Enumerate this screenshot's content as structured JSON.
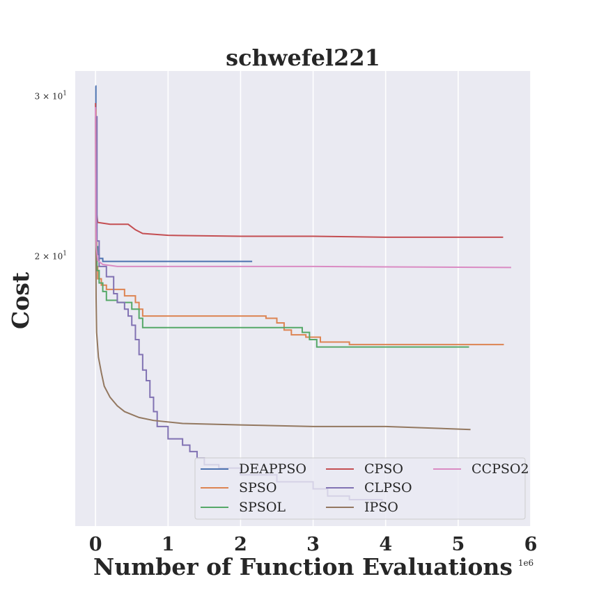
{
  "chart_data": {
    "type": "line",
    "title": "schwefel221",
    "xlabel": "Number of Function Evaluations",
    "ylabel": "Cost",
    "x_offset_label": "1e6",
    "xlim": [
      -0.28,
      6.0
    ],
    "ylim": [
      10.1,
      32.0
    ],
    "yscale": "log",
    "x_ticks": [
      0,
      1,
      2,
      3,
      4,
      5,
      6
    ],
    "x_tick_labels": [
      "0",
      "1",
      "2",
      "3",
      "4",
      "5",
      "6"
    ],
    "y_ticks": [
      {
        "value": 30,
        "base": "3 × 10",
        "exp": "1"
      },
      {
        "value": 20,
        "base": "2 × 10",
        "exp": "1"
      }
    ],
    "grid": "vertical",
    "legend_position": "lower-right",
    "series": [
      {
        "name": "DEAPPSO",
        "color": "#4c72b0",
        "step": true,
        "points": [
          [
            0,
            30.8
          ],
          [
            0.005,
            25
          ],
          [
            0.01,
            21.5
          ],
          [
            0.015,
            20.5
          ],
          [
            0.03,
            20.1
          ],
          [
            0.05,
            19.9
          ],
          [
            0.1,
            19.9
          ],
          [
            0.1,
            19.75
          ],
          [
            1.0,
            19.75
          ],
          [
            2.16,
            19.75
          ]
        ]
      },
      {
        "name": "SPSO",
        "color": "#dd8452",
        "step": true,
        "points": [
          [
            0,
            29
          ],
          [
            0.005,
            24
          ],
          [
            0.01,
            21
          ],
          [
            0.015,
            19.5
          ],
          [
            0.03,
            18.9
          ],
          [
            0.08,
            18.6
          ],
          [
            0.15,
            18.6
          ],
          [
            0.15,
            18.4
          ],
          [
            0.3,
            18.4
          ],
          [
            0.4,
            18.1
          ],
          [
            0.5,
            18.1
          ],
          [
            0.55,
            17.8
          ],
          [
            0.6,
            17.5
          ],
          [
            0.65,
            17.2
          ],
          [
            1.0,
            17.2
          ],
          [
            2.3,
            17.2
          ],
          [
            2.35,
            17.1
          ],
          [
            2.5,
            16.9
          ],
          [
            2.6,
            16.6
          ],
          [
            2.7,
            16.4
          ],
          [
            2.9,
            16.3
          ],
          [
            3.1,
            16.1
          ],
          [
            3.5,
            16.0
          ],
          [
            5.63,
            16.0
          ]
        ]
      },
      {
        "name": "SPSOL",
        "color": "#55a868",
        "step": true,
        "points": [
          [
            0,
            28.5
          ],
          [
            0.005,
            23
          ],
          [
            0.01,
            20.5
          ],
          [
            0.02,
            19.3
          ],
          [
            0.05,
            19.1
          ],
          [
            0.05,
            18.7
          ],
          [
            0.1,
            18.7
          ],
          [
            0.1,
            18.3
          ],
          [
            0.15,
            18.3
          ],
          [
            0.15,
            17.9
          ],
          [
            0.3,
            17.9
          ],
          [
            0.3,
            17.8
          ],
          [
            0.45,
            17.8
          ],
          [
            0.5,
            17.5
          ],
          [
            0.6,
            17.1
          ],
          [
            0.65,
            16.7
          ],
          [
            1.0,
            16.7
          ],
          [
            2.8,
            16.7
          ],
          [
            2.85,
            16.5
          ],
          [
            2.95,
            16.2
          ],
          [
            3.05,
            15.9
          ],
          [
            5.15,
            15.9
          ]
        ]
      },
      {
        "name": "CPSO",
        "color": "#c44e52",
        "step": false,
        "points": [
          [
            0,
            29.5
          ],
          [
            0.005,
            25
          ],
          [
            0.01,
            22.5
          ],
          [
            0.03,
            21.8
          ],
          [
            0.2,
            21.7
          ],
          [
            0.45,
            21.7
          ],
          [
            0.55,
            21.4
          ],
          [
            0.65,
            21.2
          ],
          [
            1.0,
            21.1
          ],
          [
            2.0,
            21.05
          ],
          [
            3.0,
            21.05
          ],
          [
            4.0,
            21.0
          ],
          [
            5.62,
            21.0
          ]
        ]
      },
      {
        "name": "CLPSO",
        "color": "#8172b3",
        "step": true,
        "points": [
          [
            0,
            28.5
          ],
          [
            0.02,
            20.8
          ],
          [
            0.05,
            19.5
          ],
          [
            0.15,
            19.0
          ],
          [
            0.25,
            18.2
          ],
          [
            0.3,
            17.8
          ],
          [
            0.4,
            17.5
          ],
          [
            0.45,
            17.2
          ],
          [
            0.5,
            16.8
          ],
          [
            0.55,
            16.2
          ],
          [
            0.6,
            15.6
          ],
          [
            0.65,
            15.0
          ],
          [
            0.7,
            14.6
          ],
          [
            0.75,
            14.0
          ],
          [
            0.8,
            13.5
          ],
          [
            0.85,
            13.0
          ],
          [
            1.0,
            12.6
          ],
          [
            1.2,
            12.4
          ],
          [
            1.3,
            12.2
          ],
          [
            1.4,
            12.0
          ],
          [
            1.5,
            11.8
          ],
          [
            1.7,
            11.7
          ],
          [
            2.0,
            11.5
          ],
          [
            2.5,
            11.3
          ],
          [
            3.0,
            11.1
          ],
          [
            3.2,
            10.9
          ],
          [
            3.5,
            10.8
          ],
          [
            3.95,
            10.75
          ]
        ]
      },
      {
        "name": "IPSO",
        "color": "#937860",
        "step": false,
        "points": [
          [
            0,
            28.5
          ],
          [
            0.003,
            22
          ],
          [
            0.008,
            18
          ],
          [
            0.015,
            16.5
          ],
          [
            0.04,
            15.5
          ],
          [
            0.08,
            14.9
          ],
          [
            0.12,
            14.4
          ],
          [
            0.2,
            14.0
          ],
          [
            0.3,
            13.7
          ],
          [
            0.4,
            13.5
          ],
          [
            0.6,
            13.3
          ],
          [
            0.8,
            13.2
          ],
          [
            1.2,
            13.1
          ],
          [
            2.0,
            13.05
          ],
          [
            3.0,
            13.0
          ],
          [
            4.0,
            13.0
          ],
          [
            5.17,
            12.9
          ]
        ]
      },
      {
        "name": "CCPSO2",
        "color": "#da8bc3",
        "step": false,
        "points": [
          [
            0,
            29.2
          ],
          [
            0.005,
            22
          ],
          [
            0.01,
            20.5
          ],
          [
            0.03,
            19.8
          ],
          [
            0.1,
            19.6
          ],
          [
            0.3,
            19.5
          ],
          [
            1.0,
            19.5
          ],
          [
            2.0,
            19.5
          ],
          [
            3.0,
            19.5
          ],
          [
            4.0,
            19.48
          ],
          [
            5.73,
            19.45
          ]
        ]
      }
    ]
  }
}
